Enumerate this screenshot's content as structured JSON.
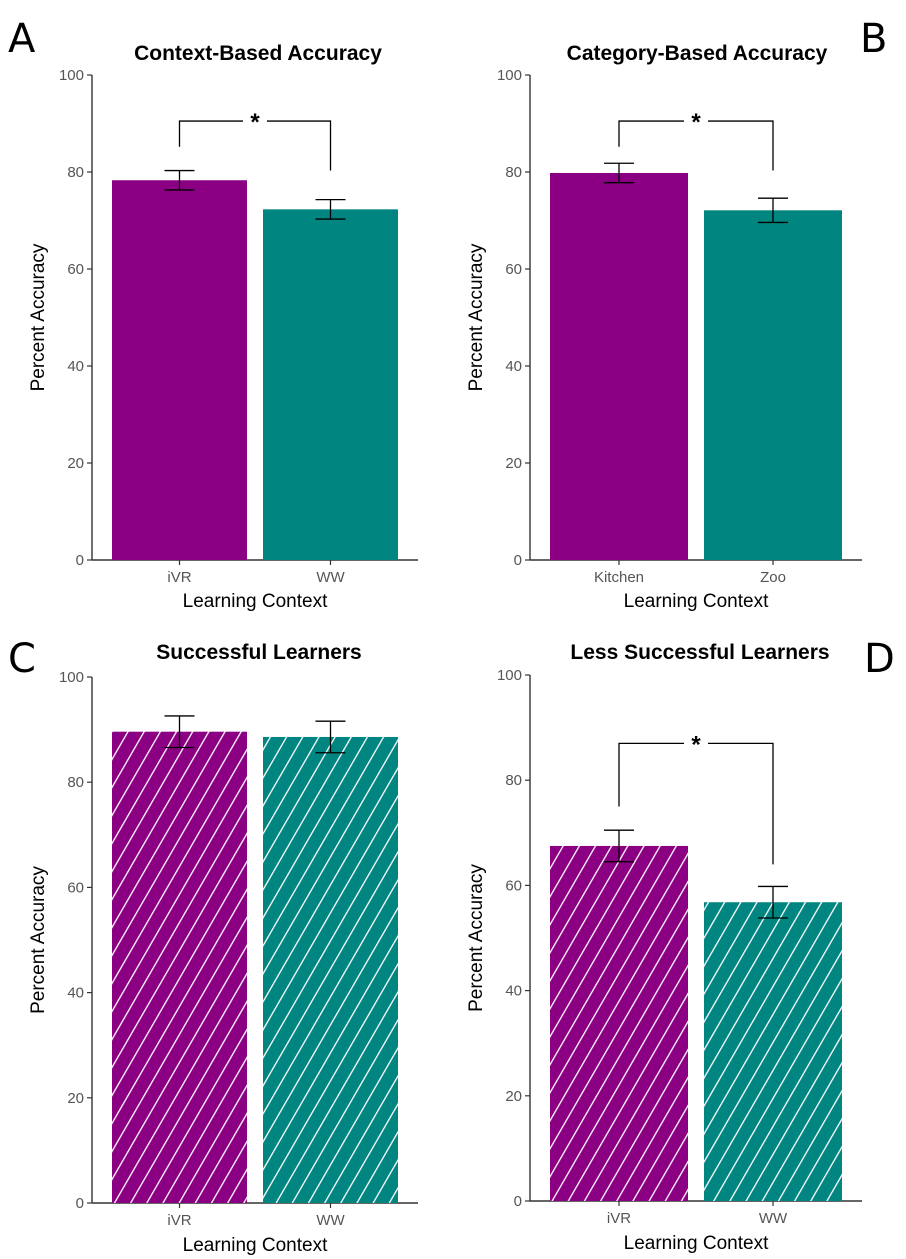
{
  "colors": {
    "ivr": "#8b0083",
    "ww": "#008580",
    "hatch": "#ffffff"
  },
  "chart_data": [
    {
      "panel": "A",
      "type": "bar",
      "title": "Context-Based Accuracy",
      "xlabel": "Learning Context",
      "ylabel": "Percent Accuracy",
      "categories": [
        "iVR",
        "WW"
      ],
      "values": [
        78.3,
        72.3
      ],
      "errors": [
        2.0,
        2.0
      ],
      "ylim": [
        0,
        100
      ],
      "yticks": [
        0,
        20,
        40,
        60,
        80,
        100
      ],
      "hatched": false,
      "significance": {
        "label": "*",
        "y": 90.5,
        "left_y": 85.2,
        "right_y": 80.3
      }
    },
    {
      "panel": "B",
      "type": "bar",
      "title": "Category-Based Accuracy",
      "xlabel": "Learning Context",
      "ylabel": "Percent Accuracy",
      "categories": [
        "Kitchen",
        "Zoo"
      ],
      "values": [
        79.8,
        72.1
      ],
      "errors": [
        2.0,
        2.5
      ],
      "ylim": [
        0,
        100
      ],
      "yticks": [
        0,
        20,
        40,
        60,
        80,
        100
      ],
      "hatched": false,
      "significance": {
        "label": "*",
        "y": 90.5,
        "left_y": 85.2,
        "right_y": 80.3
      }
    },
    {
      "panel": "C",
      "type": "bar",
      "title": "Successful Learners",
      "xlabel": "Learning Context",
      "ylabel": "Percent Accuracy",
      "categories": [
        "iVR",
        "WW"
      ],
      "values": [
        89.6,
        88.6
      ],
      "errors": [
        3.0,
        3.0
      ],
      "ylim": [
        0,
        100
      ],
      "yticks": [
        0,
        20,
        40,
        60,
        80,
        100
      ],
      "hatched": true,
      "significance": null
    },
    {
      "panel": "D",
      "type": "bar",
      "title": "Less Successful Learners",
      "xlabel": "Learning Context",
      "ylabel": "Percent Accuracy",
      "categories": [
        "iVR",
        "WW"
      ],
      "values": [
        67.5,
        56.8
      ],
      "errors": [
        3.0,
        3.0
      ],
      "ylim": [
        0,
        100
      ],
      "yticks": [
        0,
        20,
        40,
        60,
        80,
        100
      ],
      "hatched": true,
      "significance": {
        "label": "*",
        "y": 87.0,
        "left_y": 75.0,
        "right_y": 64.0
      }
    }
  ]
}
